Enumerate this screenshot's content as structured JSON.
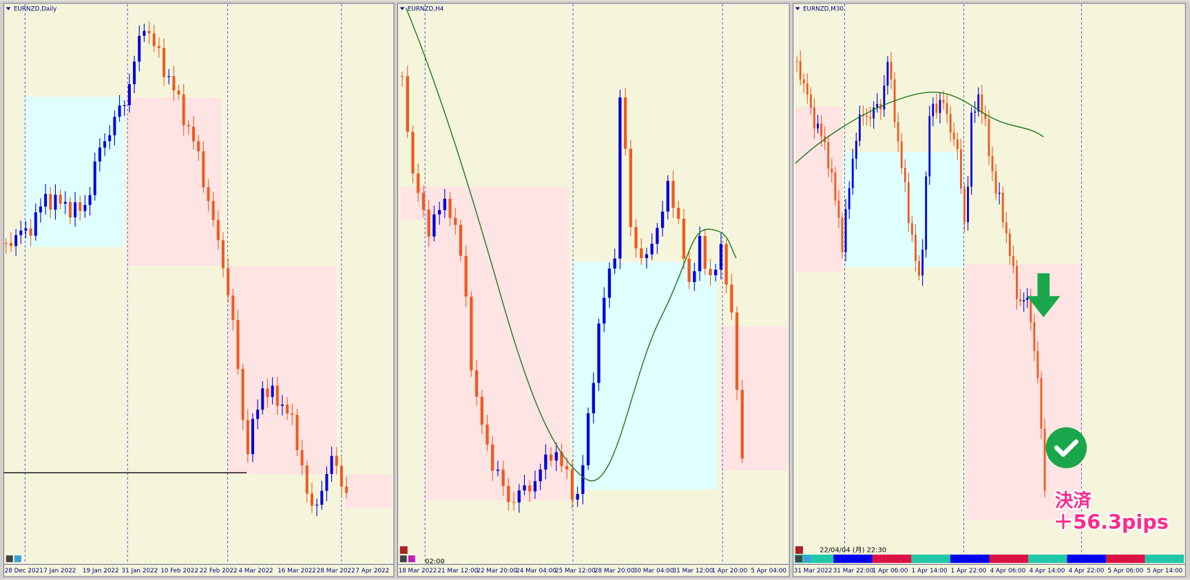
{
  "panels": [
    {
      "title": "EURNZD,Daily",
      "x_labels": [
        "28 Dec 2021",
        "7 Jan 2022",
        "19 Jan 2022",
        "31 Jan 2022",
        "10 Feb 2022",
        "22 Feb 2022",
        "4 Mar 2022",
        "16 Mar 2022",
        "28 Mar 2022",
        "7 Apr 2022"
      ]
    },
    {
      "title": "EURNZD,H4",
      "time_label": "02:00",
      "x_labels": [
        "18 Mar 2022",
        "21 Mar 12:00",
        "22 Mar 20:00",
        "24 Mar 04:00",
        "25 Mar 12:00",
        "28 Mar 20:00",
        "30 Mar 04:00",
        "31 Mar 12:00",
        "1 Apr 20:00",
        "5 Apr 04:00"
      ]
    },
    {
      "title": "EURNZD,M30",
      "time_label": "22/04/04 (月) 22:30",
      "x_labels": [
        "31 Mar 2022",
        "31 Mar 22:00",
        "1 Apr 06:00",
        "1 Apr 14:00",
        "1 Apr 22:00",
        "4 Apr 06:00",
        "4 Apr 14:00",
        "4 Apr 22:00",
        "5 Apr 06:00",
        "5 Apr 14:00"
      ]
    }
  ],
  "annotation": {
    "label": "決済",
    "value": "＋56.3pips"
  }
}
